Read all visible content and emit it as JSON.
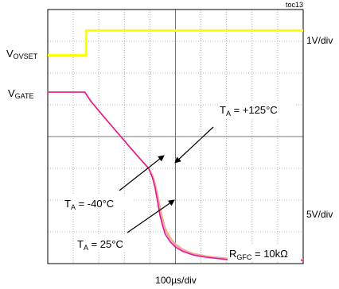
{
  "chart_data": {
    "type": "line",
    "figure_id": "toc13",
    "x_label": "100µs/div",
    "grid": true,
    "grid_divisions": {
      "x": 10,
      "y": 8
    },
    "channel_scales": [
      "1V/div",
      "5V/div"
    ],
    "channel_labels": [
      {
        "main": "V",
        "sub": "OVSET"
      },
      {
        "main": "V",
        "sub": "GATE"
      }
    ],
    "series": [
      {
        "name": "V_OVSET",
        "color": "#ffff00",
        "x_div": [
          0,
          1.5,
          1.5,
          10
        ],
        "y_div": [
          6.56,
          6.56,
          7.34,
          7.34
        ]
      },
      {
        "name": "V_GATE (TA = -40°C)",
        "color": "#e8188c",
        "x_div": [
          0,
          1.45,
          1.7,
          2.2,
          2.7,
          3.2,
          3.7,
          3.95,
          4.1,
          4.2,
          4.3,
          4.4,
          4.5,
          4.6,
          4.8,
          5.0,
          5.3,
          5.7,
          6.2,
          7.0,
          8.0,
          10
        ],
        "y_div": [
          5.4,
          5.4,
          5.1,
          4.62,
          4.15,
          3.68,
          3.22,
          3.0,
          2.7,
          2.4,
          1.95,
          1.5,
          1.18,
          0.92,
          0.68,
          0.52,
          0.38,
          0.27,
          0.2,
          0.13,
          0.1,
          0.1
        ]
      },
      {
        "name": "V_GATE (TA = 25°C)",
        "color": "#f0a0c8",
        "x_div": [
          0,
          1.45,
          1.7,
          2.2,
          2.7,
          3.2,
          3.7,
          3.95,
          4.1,
          4.2,
          4.3,
          4.4,
          4.5,
          4.6,
          4.8,
          5.0,
          5.3,
          5.7,
          6.2,
          7.0,
          8.0,
          10
        ],
        "y_div": [
          5.4,
          5.4,
          5.1,
          4.62,
          4.15,
          3.68,
          3.22,
          3.0,
          2.75,
          2.5,
          2.1,
          1.65,
          1.3,
          1.02,
          0.75,
          0.58,
          0.42,
          0.3,
          0.22,
          0.15,
          0.12,
          0.12
        ]
      },
      {
        "name": "V_GATE (TA = +125°C)",
        "color": "#e8b878",
        "x_div": [
          0,
          1.45,
          1.7,
          2.2,
          2.7,
          3.2,
          3.7,
          3.95,
          4.1,
          4.2,
          4.3,
          4.4,
          4.5,
          4.6,
          4.8,
          5.0,
          5.3,
          5.7,
          6.2,
          7.0,
          8.0,
          10
        ],
        "y_div": [
          5.4,
          5.4,
          5.1,
          4.62,
          4.15,
          3.68,
          3.22,
          3.0,
          2.8,
          2.55,
          2.2,
          1.8,
          1.42,
          1.12,
          0.82,
          0.62,
          0.45,
          0.32,
          0.24,
          0.17,
          0.13,
          0.13
        ]
      }
    ],
    "annotations": [
      {
        "main": "T",
        "sub": "A",
        "rest": " = +125°C"
      },
      {
        "main": "T",
        "sub": "A",
        "rest": " = -40°C"
      },
      {
        "main": "T",
        "sub": "A",
        "rest": " = 25°C"
      },
      {
        "main": "R",
        "sub": "GFC",
        "rest": " = 10kΩ"
      }
    ]
  }
}
